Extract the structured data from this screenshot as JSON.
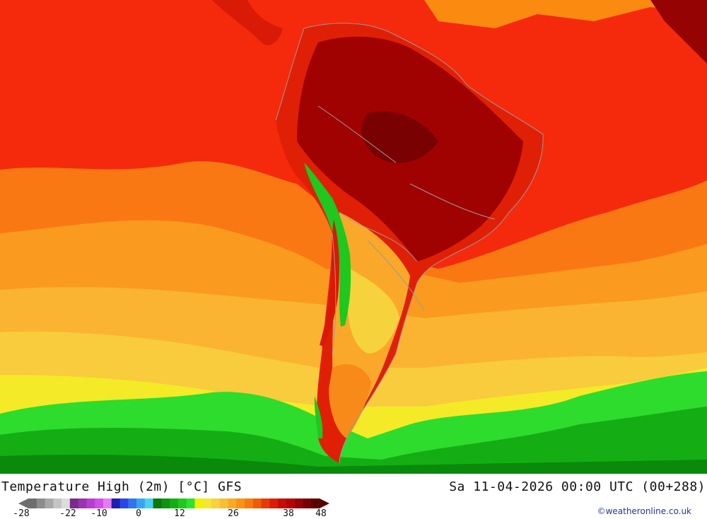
{
  "map": {
    "title": "Temperature High (2m) [°C] GFS",
    "datetime": "Sa 11-04-2026 00:00 UTC (00+288)",
    "credit": "©weatheronline.co.uk",
    "legend": {
      "tick_labels": [
        "-28",
        "-22",
        "-10",
        "0",
        "12",
        "26",
        "38",
        "48"
      ],
      "colors": [
        "#6e6e6e",
        "#8c8c8c",
        "#a8a8a8",
        "#c4c4c4",
        "#dcdcdc",
        "#7a2a8c",
        "#9b32b0",
        "#b83cd0",
        "#d24ee8",
        "#e87af2",
        "#1e1eb4",
        "#2a46e6",
        "#2f74f0",
        "#3aa4f4",
        "#48d2f8",
        "#0a7a0a",
        "#0e940e",
        "#14ae14",
        "#1ec81e",
        "#2ee22e",
        "#f0f000",
        "#f4e632",
        "#f6d23c",
        "#f8be34",
        "#faa828",
        "#fa9214",
        "#f87a0a",
        "#f05a05",
        "#e63a05",
        "#dc1e05",
        "#cc0a05",
        "#b40505",
        "#960303",
        "#780202",
        "#5a0101"
      ]
    }
  }
}
